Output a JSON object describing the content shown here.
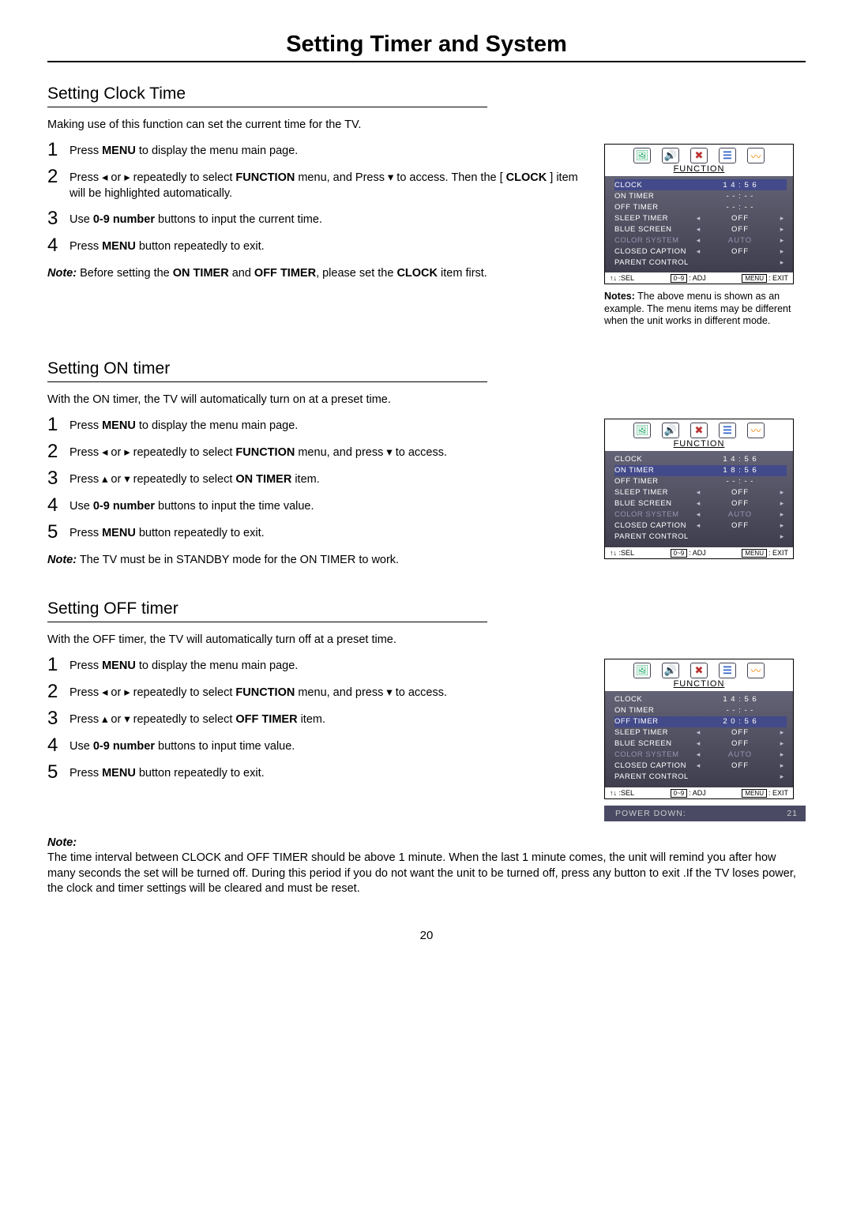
{
  "page_title": "Setting Timer and System",
  "page_number": "20",
  "arrows": {
    "left": "◂",
    "right": "▸",
    "up": "▴",
    "down": "▾",
    "updown": "↑↓"
  },
  "menu_caption": "FUNCTION",
  "osd_footer": {
    "sel": ":SEL",
    "adj_box": "0~9",
    "adj": ": ADJ",
    "exit_box": "MENU",
    "exit": ": EXIT"
  },
  "icons": {
    "pic": "🖼",
    "audio": "🔊",
    "tool": "✖",
    "list": "☰",
    "wave": "〰"
  },
  "clock": {
    "title": "Setting Clock Time",
    "intro": "Making use of this function can set the current time for the TV.",
    "steps": [
      {
        "n": "1",
        "html": "Press  <b>MENU</b> to display the menu main page."
      },
      {
        "n": "2",
        "html": "Press  ◂ or ▸  repeatedly to select <b>FUNCTION</b> menu, and Press  ▾  to access. Then the [ <b>CLOCK</b> ] item will be highlighted automatically."
      },
      {
        "n": "3",
        "html": "Use <b>0-9 number</b> buttons to input the current time."
      },
      {
        "n": "4",
        "html": "Press <b>MENU</b>  button repeatedly to exit."
      }
    ],
    "note": "<i>Note:</i> Before setting the <b>ON TIMER</b> and <b>OFF TIMER</b>, please set the <b>CLOCK</b> item first.",
    "menu_rows": [
      {
        "key": "CLOCK",
        "val": "1 4 : 5 6",
        "hl": true
      },
      {
        "key": "ON  TIMER",
        "val": "- - : - -"
      },
      {
        "key": "OFF  TIMER",
        "val": "- - : - -"
      },
      {
        "key": "SLEEP  TIMER",
        "val": "OFF",
        "arrows": true
      },
      {
        "key": "BLUE  SCREEN",
        "val": "OFF",
        "arrows": true
      },
      {
        "key": "COLOR  SYSTEM",
        "val": "AUTO",
        "arrows": true,
        "dim": true
      },
      {
        "key": "CLOSED  CAPTION",
        "val": "OFF",
        "arrows": true
      },
      {
        "key": "PARENT CONTROL",
        "ra_only": true
      }
    ],
    "right_note": "<b>Notes:</b> The above menu is shown as an example. The menu items may be different when the unit works in different mode."
  },
  "on": {
    "title": "Setting ON timer",
    "intro": "With the ON timer, the TV will automatically turn on at a preset time.",
    "steps": [
      {
        "n": "1",
        "html": "Press  <b>MENU</b> to display the menu main page."
      },
      {
        "n": "2",
        "html": "Press  ◂ or ▸  repeatedly to select <b>FUNCTION</b> menu, and press ▾  to access."
      },
      {
        "n": "3",
        "html": "Press   ▴ or ▾ repeatedly to select <b>ON TIMER</b> item."
      },
      {
        "n": "4",
        "html": "Use <b>0-9 number</b> buttons to input the time value."
      },
      {
        "n": "5",
        "html": "Press <b>MENU</b>  button repeatedly to exit."
      }
    ],
    "note": "<i>Note:</i> The TV must be in STANDBY mode for the ON TIMER to work.",
    "menu_rows": [
      {
        "key": "CLOCK",
        "val": "1 4 : 5 6"
      },
      {
        "key": "ON  TIMER",
        "val": "1 8 : 5 6",
        "hl": true
      },
      {
        "key": "OFF  TIMER",
        "val": "- - : - -"
      },
      {
        "key": "SLEEP  TIMER",
        "val": "OFF",
        "arrows": true
      },
      {
        "key": "BLUE  SCREEN",
        "val": "OFF",
        "arrows": true
      },
      {
        "key": "COLOR  SYSTEM",
        "val": "AUTO",
        "arrows": true,
        "dim": true
      },
      {
        "key": "CLOSED  CAPTION",
        "val": "OFF",
        "arrows": true
      },
      {
        "key": "PARENT CONTROL",
        "ra_only": true
      }
    ]
  },
  "off": {
    "title": "Setting OFF timer",
    "intro": "With the OFF timer, the TV will automatically turn off at a preset time.",
    "steps": [
      {
        "n": "1",
        "html": "Press  <b>MENU</b> to display the menu main page."
      },
      {
        "n": "2",
        "html": "Press  ◂ or ▸  repeatedly to select <b>FUNCTION</b> menu, and press ▾  to access."
      },
      {
        "n": "3",
        "html": "Press   ▴ or  ▾  repeatedly to select  <b>OFF TIMER</b>  item."
      },
      {
        "n": "4",
        "html": "Use <b>0-9 number</b> buttons to input time value."
      },
      {
        "n": "5",
        "html": "Press <b>MENU</b>  button repeatedly to exit."
      }
    ],
    "menu_rows": [
      {
        "key": "CLOCK",
        "val": "1 4 : 5 6"
      },
      {
        "key": "ON  TIMER",
        "val": "- - : - -"
      },
      {
        "key": "OFF  TIMER",
        "val": "2 0 : 5 6",
        "hl": true
      },
      {
        "key": "SLEEP  TIMER",
        "val": "OFF",
        "arrows": true
      },
      {
        "key": "BLUE  SCREEN",
        "val": "OFF",
        "arrows": true
      },
      {
        "key": "COLOR  SYSTEM",
        "val": "AUTO",
        "arrows": true,
        "dim": true
      },
      {
        "key": "CLOSED  CAPTION",
        "val": "OFF",
        "arrows": true
      },
      {
        "key": "PARENT CONTROL",
        "ra_only": true
      }
    ],
    "power_down_label": "POWER   DOWN:",
    "power_down_val": "21"
  },
  "footer_note": "<b>Note:</b><br>The time interval between CLOCK and OFF TIMER should be above 1 minute. When the last 1 minute comes, the unit will remind you after how many seconds the set will be turned off. During this period if you do not want the unit to be turned off, press any button to exit .If the TV loses power, the clock and timer settings will be cleared and must be reset."
}
